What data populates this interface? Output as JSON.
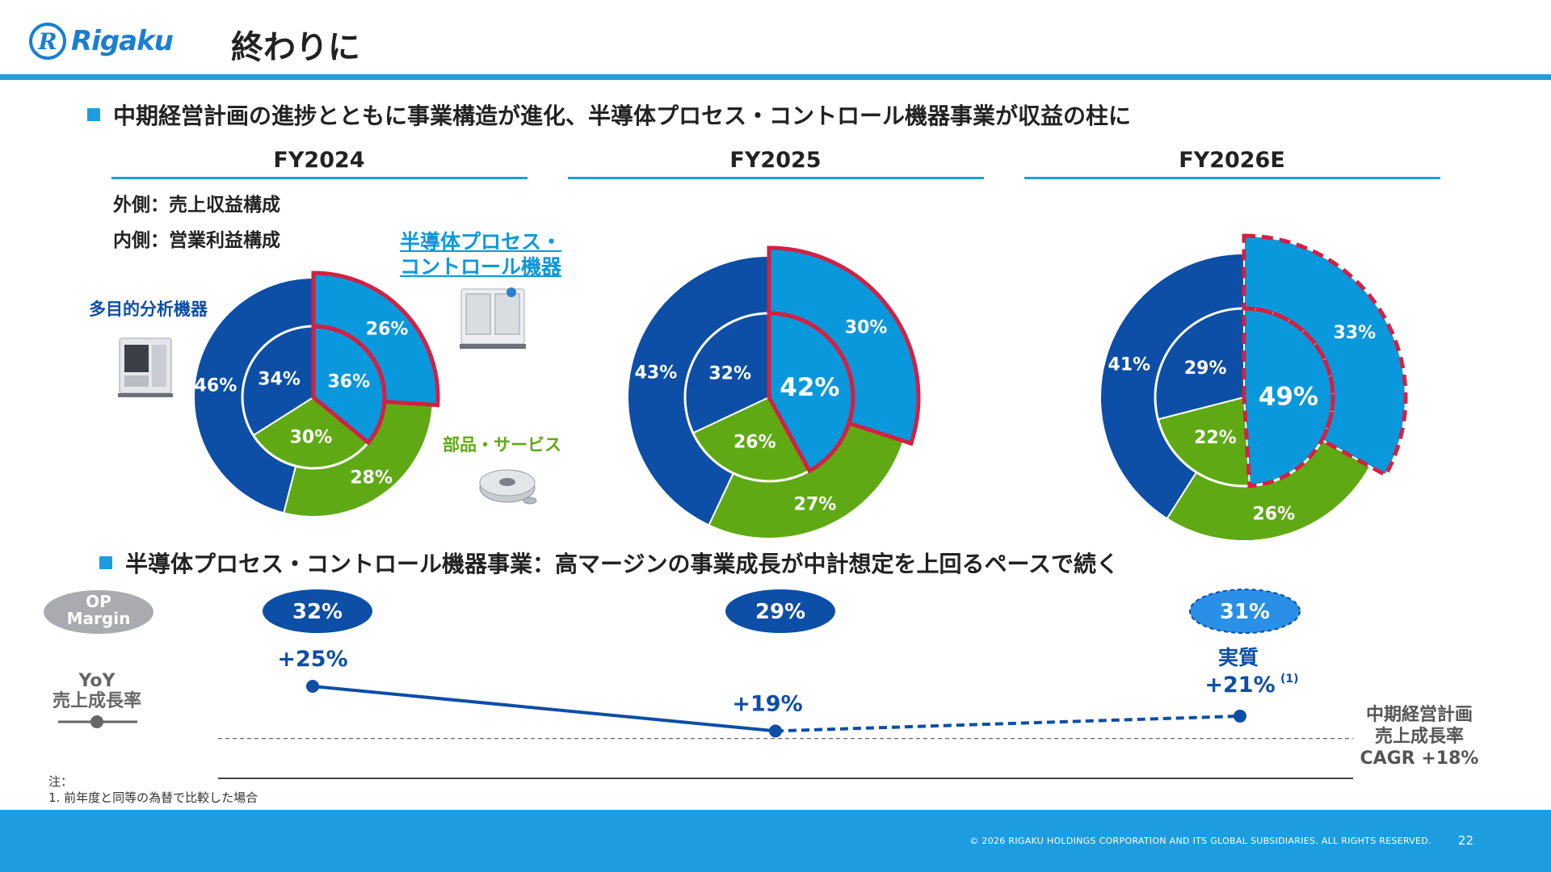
{
  "header": {
    "logo_mark": "R",
    "logo_text": "Rigaku",
    "title": "終わりに"
  },
  "bullets": [
    "中期経営計画の進捗とともに事業構造が進化、半導体プロセス・コントロール機器事業が収益の柱に",
    "半導体プロセス・コントロール機器事業：高マージンの事業成長が中計想定を上回るペースで続く"
  ],
  "legend": {
    "outer": "外側：売上収益構成",
    "inner": "内側：営業利益構成"
  },
  "segments": {
    "semiconductor": "半導体プロセス・コントロール機器",
    "semiconductor_line1": "半導体プロセス・",
    "semiconductor_line2": "コントロール機器",
    "multipurpose": "多目的分析機器",
    "parts": "部品・サービス"
  },
  "colors": {
    "multipurpose": "#0d4ea6",
    "semiconductor": "#0a98dc",
    "parts": "#5faa14",
    "highlight": "#d42042",
    "accent_blue": "#1d9de0"
  },
  "chart_data": {
    "type": "pie",
    "description_outer": "外側：売上収益構成",
    "description_inner": "内側：営業利益構成",
    "years": [
      "FY2024",
      "FY2025",
      "FY2026E"
    ],
    "series": [
      {
        "name": "半導体プロセス・コントロール機器",
        "outer": [
          26,
          30,
          33
        ],
        "inner": [
          36,
          42,
          49
        ]
      },
      {
        "name": "部品・サービス",
        "outer": [
          28,
          27,
          26
        ],
        "inner": [
          30,
          26,
          22
        ]
      },
      {
        "name": "多目的分析機器",
        "outer": [
          46,
          43,
          41
        ],
        "inner": [
          34,
          32,
          29
        ]
      }
    ]
  },
  "margin_chart": {
    "op_margin_label_1": "OP",
    "op_margin_label_2": "Margin",
    "op_margin": [
      "32%",
      "29%",
      "31%"
    ],
    "yoy_label_1": "YoY",
    "yoy_label_2": "売上成長率",
    "yoy_values": [
      25,
      19,
      21
    ],
    "yoy_labels": [
      "+25%",
      "+19%",
      "+21%"
    ],
    "fy2026_note": "実質",
    "footnote_marker": "(1)",
    "cagr_line1": "中期経営計画",
    "cagr_line2": "売上成長率",
    "cagr_line3": "CAGR +18%",
    "cagr_value": 18
  },
  "notes": {
    "title": "注：",
    "item1": "1. 前年度と同等の為替で比較した場合"
  },
  "footer": {
    "copyright": "© 2026 RIGAKU HOLDINGS CORPORATION AND ITS GLOBAL SUBSIDIARIES. ALL RIGHTS RESERVED.",
    "page": "22"
  }
}
